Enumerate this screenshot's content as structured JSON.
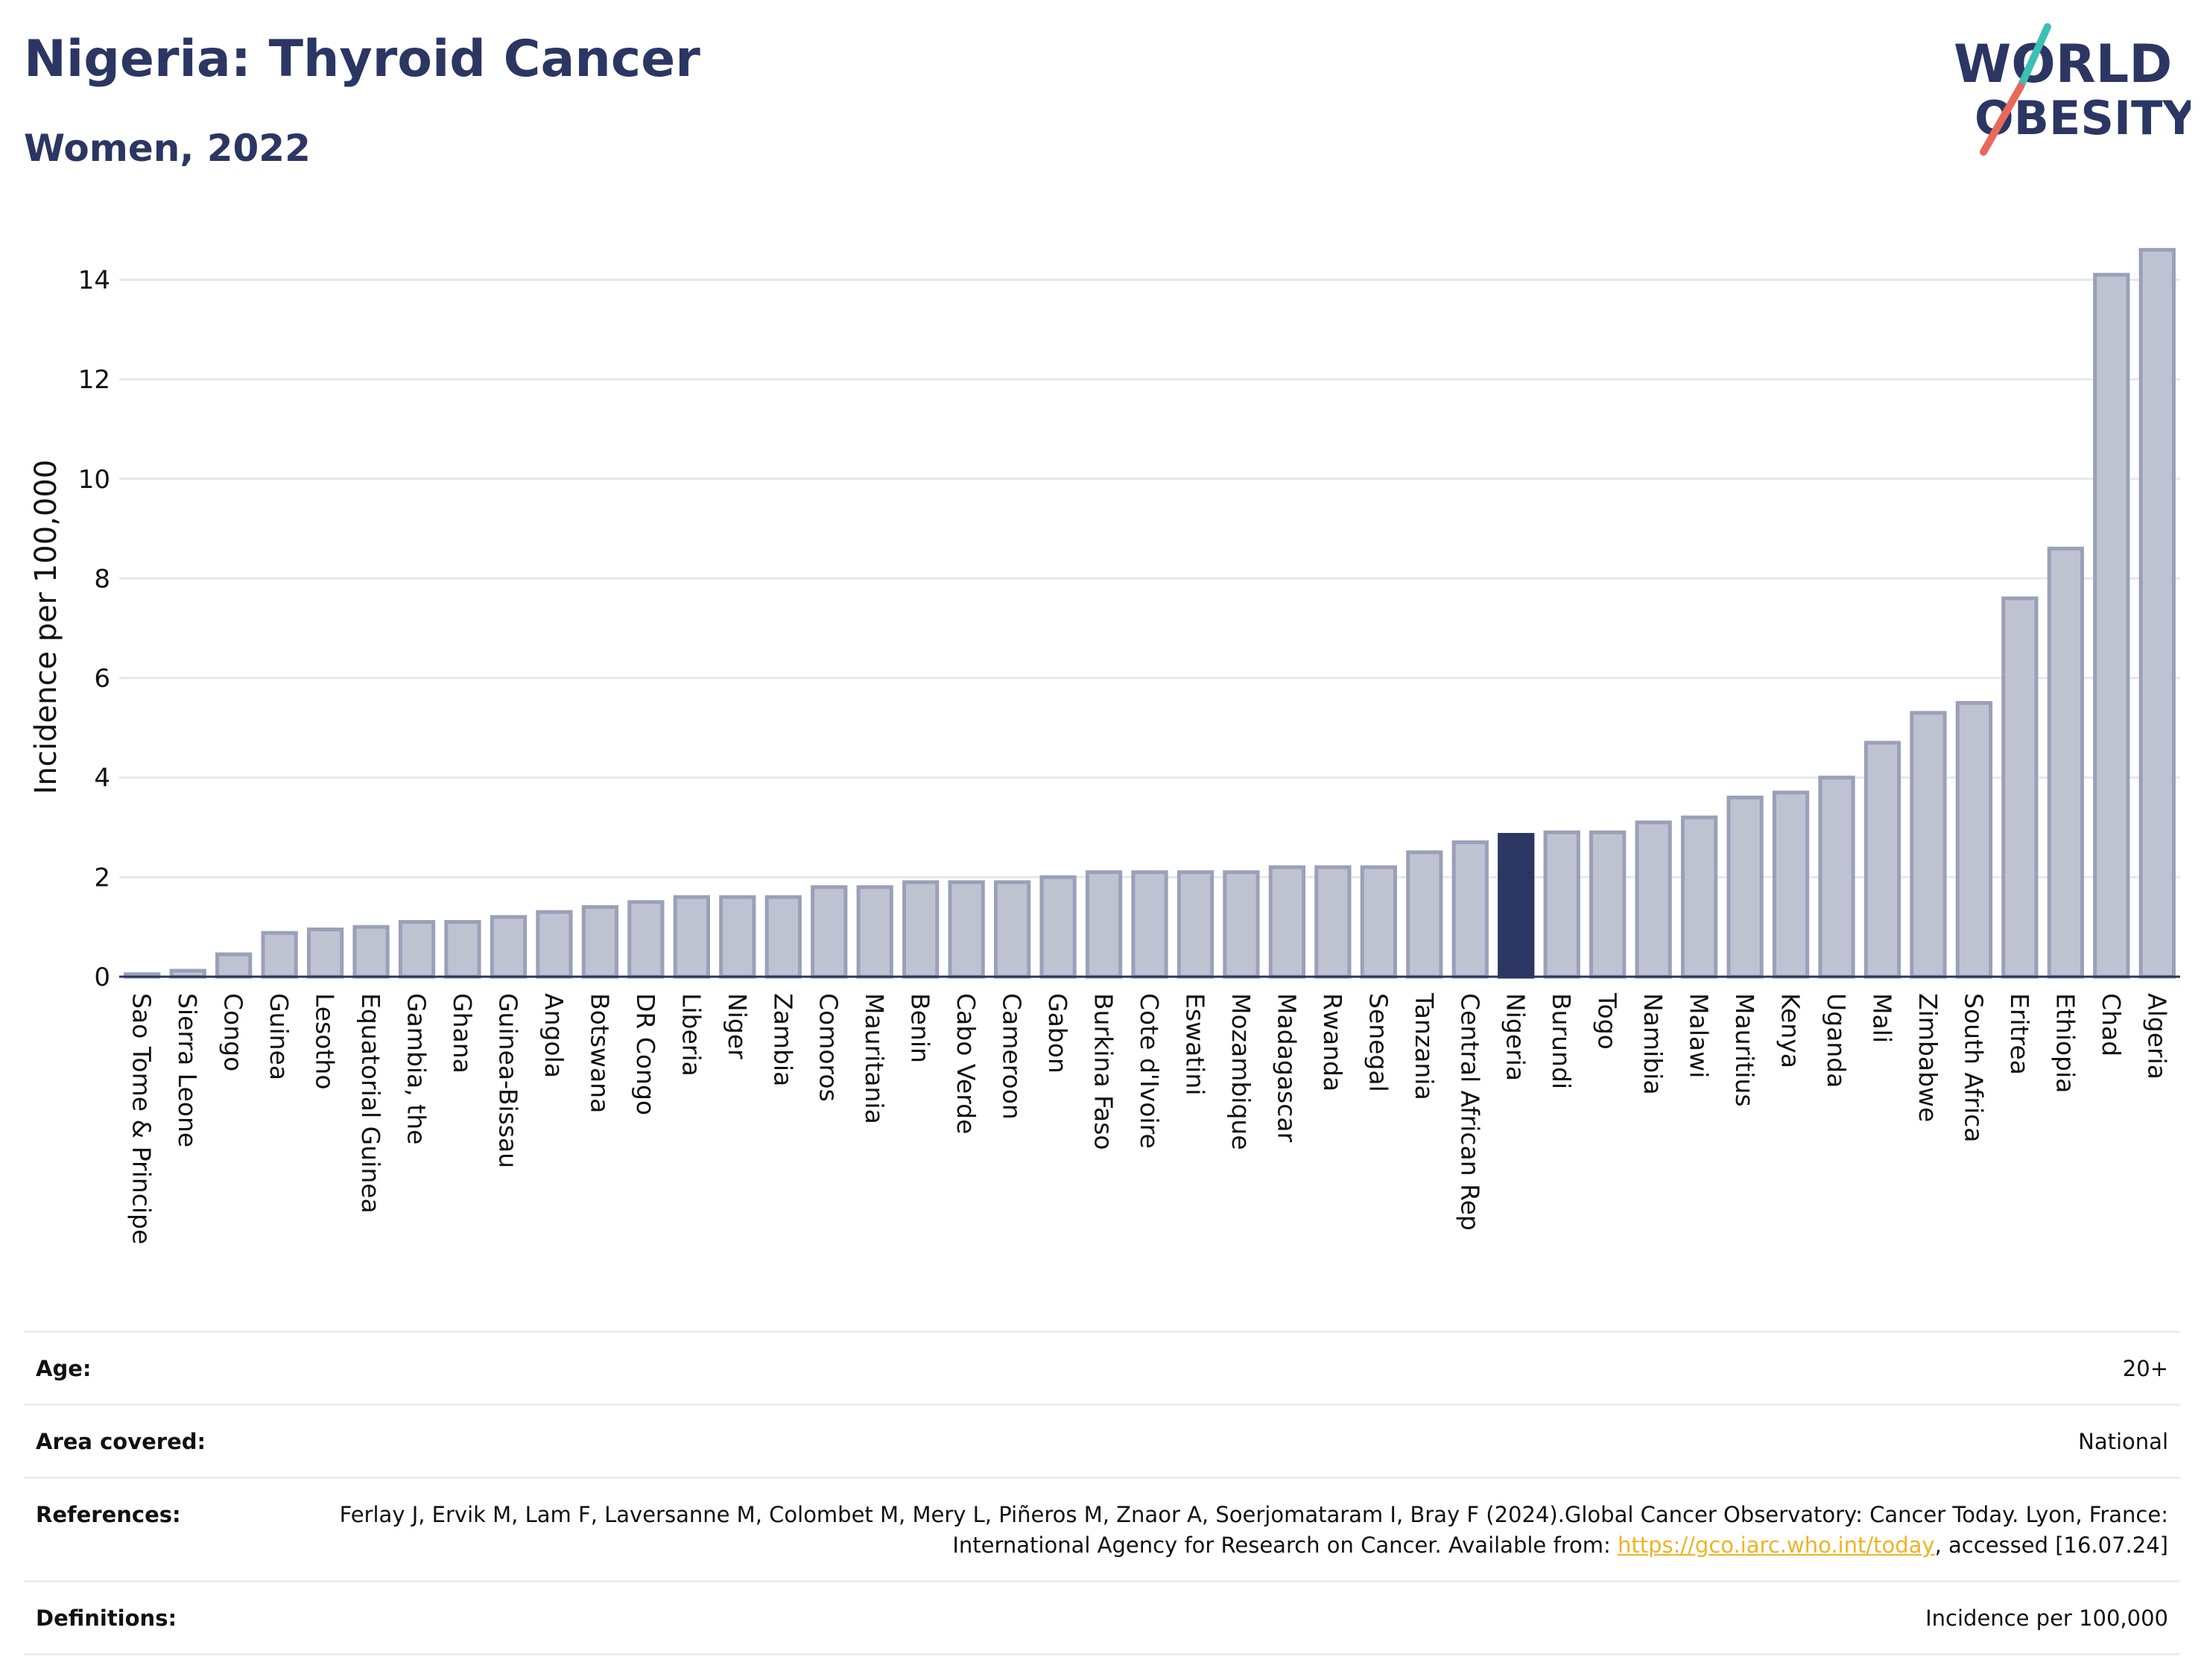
{
  "header": {
    "title": "Nigeria: Thyroid Cancer",
    "subtitle": "Women, 2022",
    "logo_text": [
      "WORLD",
      "OBESITY"
    ]
  },
  "colors": {
    "title": "#2b3663",
    "bar_default": "#bfc3d1",
    "bar_border": "#9aa0b8",
    "bar_highlight": "#2b3663",
    "link": "#f0b323",
    "logo_teal": "#3cbfb4",
    "logo_red": "#e8695a"
  },
  "chart_data": {
    "type": "bar",
    "title": "Nigeria: Thyroid Cancer",
    "subtitle": "Women, 2022",
    "xlabel": "",
    "ylabel": "Incidence per 100,000",
    "ylim": [
      0,
      14.8
    ],
    "yticks": [
      0,
      2,
      4,
      6,
      8,
      10,
      12,
      14
    ],
    "grid": true,
    "highlight": "Nigeria",
    "categories": [
      "Sao Tome & Principe",
      "Sierra Leone",
      "Congo",
      "Guinea",
      "Lesotho",
      "Equatorial Guinea",
      "Gambia, the",
      "Ghana",
      "Guinea-Bissau",
      "Angola",
      "Botswana",
      "DR Congo",
      "Liberia",
      "Niger",
      "Zambia",
      "Comoros",
      "Mauritania",
      "Benin",
      "Cabo Verde",
      "Cameroon",
      "Gabon",
      "Burkina Faso",
      "Cote d'Ivoire",
      "Eswatini",
      "Mozambique",
      "Madagascar",
      "Rwanda",
      "Senegal",
      "Tanzania",
      "Central African Rep",
      "Nigeria",
      "Burundi",
      "Togo",
      "Namibia",
      "Malawi",
      "Mauritius",
      "Kenya",
      "Uganda",
      "Mali",
      "Zimbabwe",
      "South Africa",
      "Eritrea",
      "Ethiopia",
      "Chad",
      "Algeria"
    ],
    "values": [
      0.05,
      0.12,
      0.45,
      0.88,
      0.95,
      1.0,
      1.1,
      1.1,
      1.2,
      1.3,
      1.4,
      1.5,
      1.6,
      1.6,
      1.6,
      1.8,
      1.8,
      1.9,
      1.9,
      1.9,
      2.0,
      2.1,
      2.1,
      2.1,
      2.1,
      2.2,
      2.2,
      2.2,
      2.5,
      2.7,
      2.85,
      2.9,
      2.9,
      3.1,
      3.2,
      3.6,
      3.7,
      4.0,
      4.7,
      5.3,
      5.5,
      7.6,
      8.6,
      14.1,
      14.6
    ]
  },
  "meta": {
    "rows": [
      {
        "key": "Age:",
        "value": "20+"
      },
      {
        "key": "Area covered:",
        "value": "National"
      },
      {
        "key": "References:",
        "value_pre": "Ferlay J, Ervik M, Lam F, Laversanne M, Colombet M, Mery L, Piñeros M, Znaor A, Soerjomataram I, Bray F (2024).Global Cancer Observatory: Cancer Today. Lyon, France: International Agency for Research on Cancer. Available from: ",
        "link": "https://gco.iarc.who.int/today",
        "value_post": ", accessed [16.07.24]"
      },
      {
        "key": "Definitions:",
        "value": "Incidence per 100,000"
      }
    ]
  }
}
